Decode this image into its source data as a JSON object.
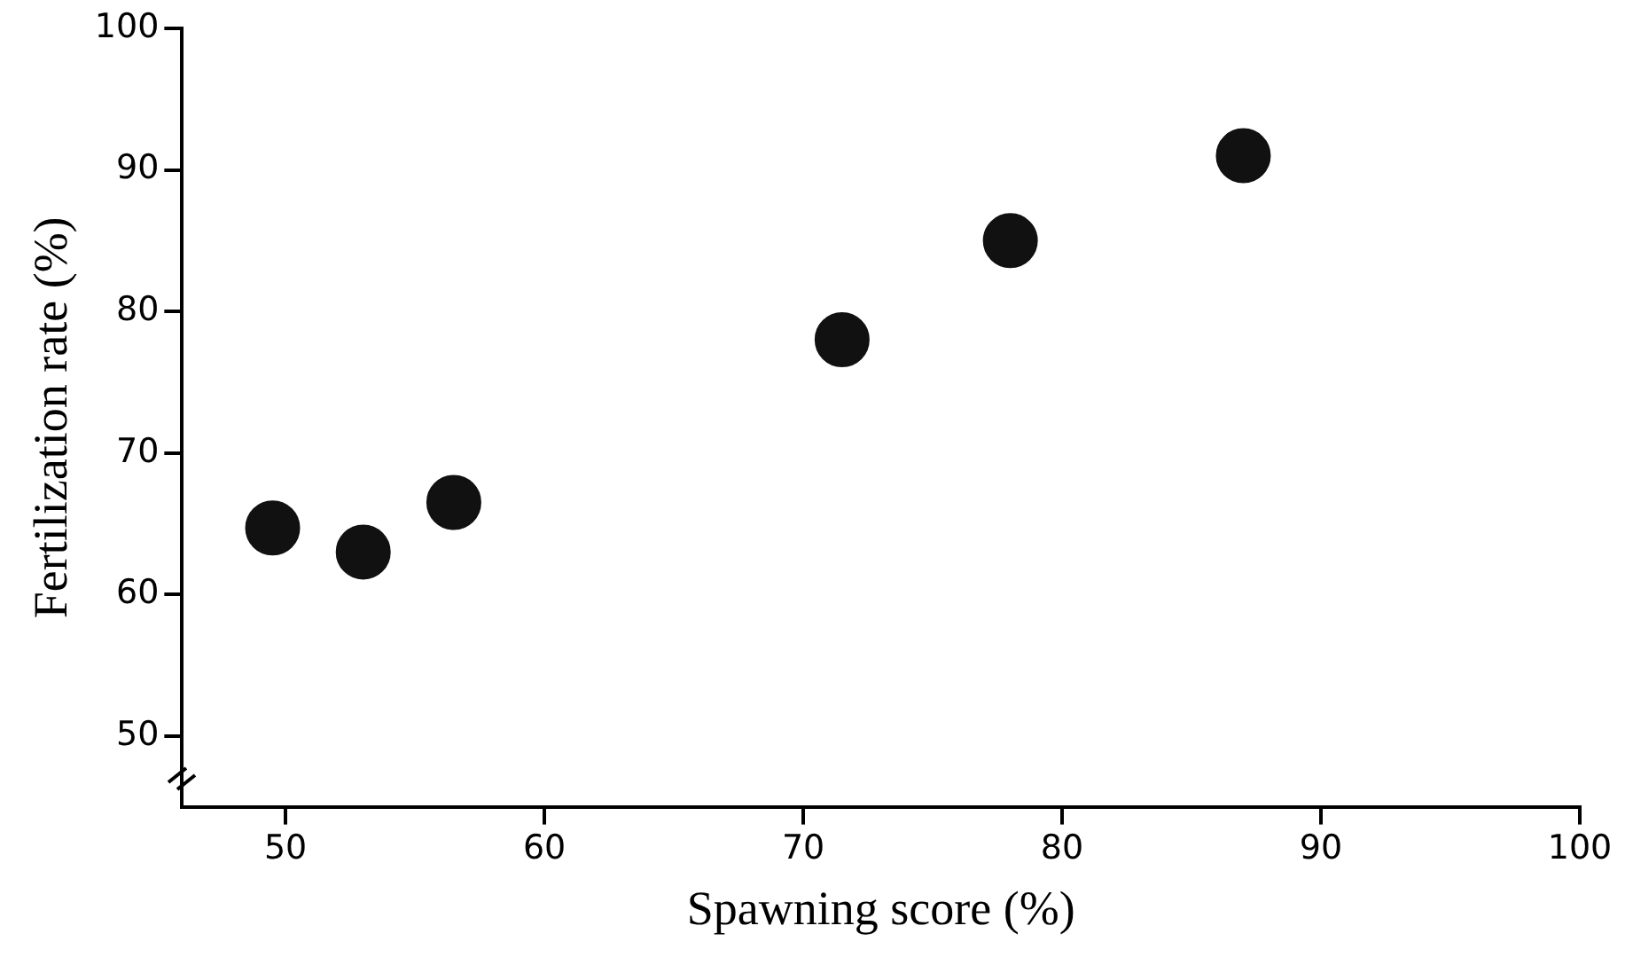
{
  "chart_data": {
    "type": "scatter",
    "xlabel": "Spawning score (%)",
    "ylabel": "Fertilization rate (%)",
    "x": [
      49.5,
      53,
      56.5,
      71.5,
      78,
      87
    ],
    "series": [
      {
        "color": "#111111",
        "values": [
          64.7,
          63,
          66.5,
          78,
          85,
          91
        ]
      }
    ],
    "xlim": [
      46,
      100
    ],
    "xticks": [
      50,
      60,
      70,
      80,
      90,
      100
    ],
    "ylim": [
      45,
      100
    ],
    "yticks": [
      50,
      60,
      70,
      80,
      90,
      100
    ],
    "grid": false,
    "legend": false,
    "marker": "circle"
  }
}
